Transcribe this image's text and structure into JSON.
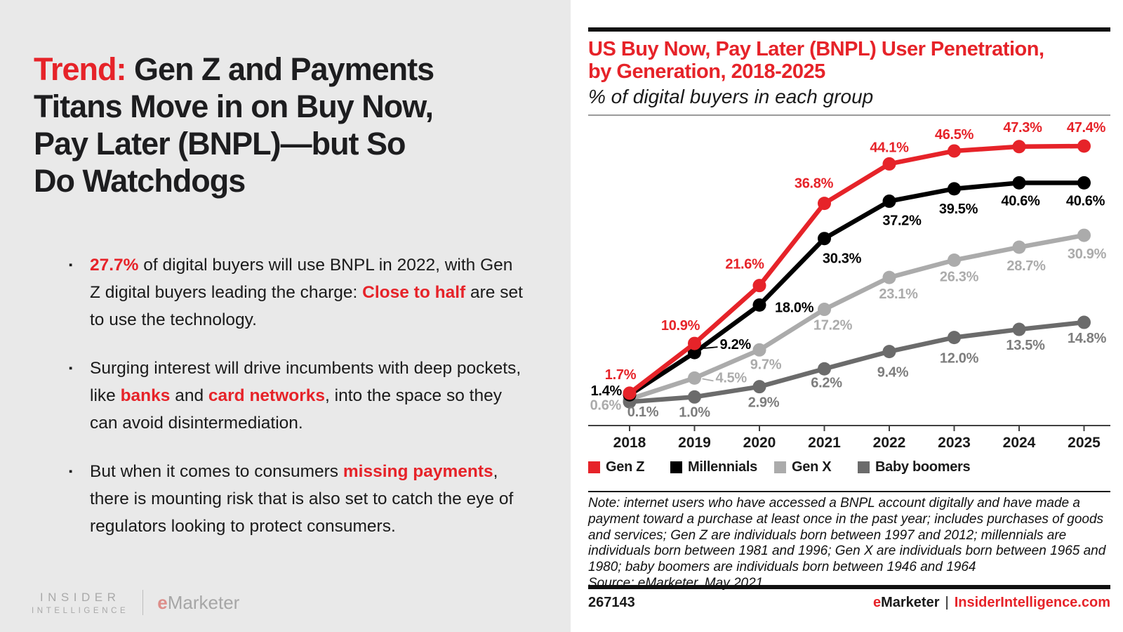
{
  "page": {
    "bg_left": "#e9e9e9",
    "bg_right": "#ffffff",
    "accent_red": "#e62329"
  },
  "left_panel": {
    "headline": {
      "highlight": "Trend:",
      "line1_rest": "Gen Z and Payments",
      "line2": "Titans Move in on Buy Now,",
      "line3": "Pay Later (BNPL)—but So",
      "line4": "Do Watchdogs"
    },
    "bullets": [
      {
        "segments": [
          {
            "text": "27.7%",
            "emphasis": true
          },
          {
            "text": " of digital buyers will use BNPL in 2022, with Gen Z digital buyers leading the charge: ",
            "emphasis": false
          },
          {
            "text": "Close to half",
            "emphasis": true
          },
          {
            "text": " are set to use the technology.",
            "emphasis": false
          }
        ]
      },
      {
        "segments": [
          {
            "text": "Surging interest will drive incumbents with deep pockets, like ",
            "emphasis": false
          },
          {
            "text": "banks",
            "emphasis": true
          },
          {
            "text": " and ",
            "emphasis": false
          },
          {
            "text": "card networks",
            "emphasis": true
          },
          {
            "text": ", into the space so they can avoid disintermediation.",
            "emphasis": false
          }
        ]
      },
      {
        "segments": [
          {
            "text": "But when it comes to consumers ",
            "emphasis": false
          },
          {
            "text": "missing payments",
            "emphasis": true
          },
          {
            "text": ", there is mounting risk that is also set to catch the eye of regulators looking to protect consumers.",
            "emphasis": false
          }
        ]
      }
    ],
    "logo": {
      "insider_line1": "INSIDER",
      "insider_line2": "INTELLIGENCE",
      "emarketer_e": "e",
      "emarketer_rest": "Marketer"
    }
  },
  "chart": {
    "title_line1": "US Buy Now, Pay Later (BNPL) User Penetration,",
    "title_line2": "by Generation, 2018-2025",
    "subtitle": "% of digital buyers in each group"
  },
  "chart_data": {
    "type": "line",
    "categories": [
      "2018",
      "2019",
      "2020",
      "2021",
      "2022",
      "2023",
      "2024",
      "2025"
    ],
    "series": [
      {
        "name": "Gen Z",
        "color": "#e62329",
        "label_color": "#e62329",
        "values": [
          1.7,
          10.9,
          21.6,
          36.8,
          44.1,
          46.5,
          47.3,
          47.4
        ]
      },
      {
        "name": "Millennials",
        "color": "#000000",
        "label_color": "#000000",
        "values": [
          1.4,
          9.2,
          18.0,
          30.3,
          37.2,
          39.5,
          40.6,
          40.6
        ]
      },
      {
        "name": "Gen X",
        "color": "#ababab",
        "label_color": "#ababab",
        "values": [
          0.6,
          4.5,
          9.7,
          17.2,
          23.1,
          26.3,
          28.7,
          30.9
        ]
      },
      {
        "name": "Baby boomers",
        "color": "#6b6b6b",
        "label_color": "#7d7d7d",
        "values": [
          0.1,
          1.0,
          2.9,
          6.2,
          9.4,
          12.0,
          13.5,
          14.8
        ]
      }
    ],
    "ylim": [
      0,
      50
    ],
    "grid": false,
    "legend_position": "bottom",
    "value_suffix": "%",
    "title": "US Buy Now, Pay Later (BNPL) User Penetration, by Generation, 2018-2025",
    "xlabel": "",
    "ylabel": "% of digital buyers in each group"
  },
  "note": {
    "text": "Note: internet users who have accessed a BNPL account digitally and have made a payment toward a purchase at least once in the past year; includes purchases of goods and services; Gen Z are individuals born between 1997 and 2012; millennials are individuals born between 1981 and 1996; Gen X are individuals born between 1965 and 1980; baby boomers are individuals born between 1946 and 1964",
    "source": "Source: eMarketer, May 2021"
  },
  "footer": {
    "chart_id": "267143",
    "brand_e": "e",
    "brand_rest": "Marketer",
    "separator": "|",
    "site": "InsiderIntelligence.com"
  }
}
